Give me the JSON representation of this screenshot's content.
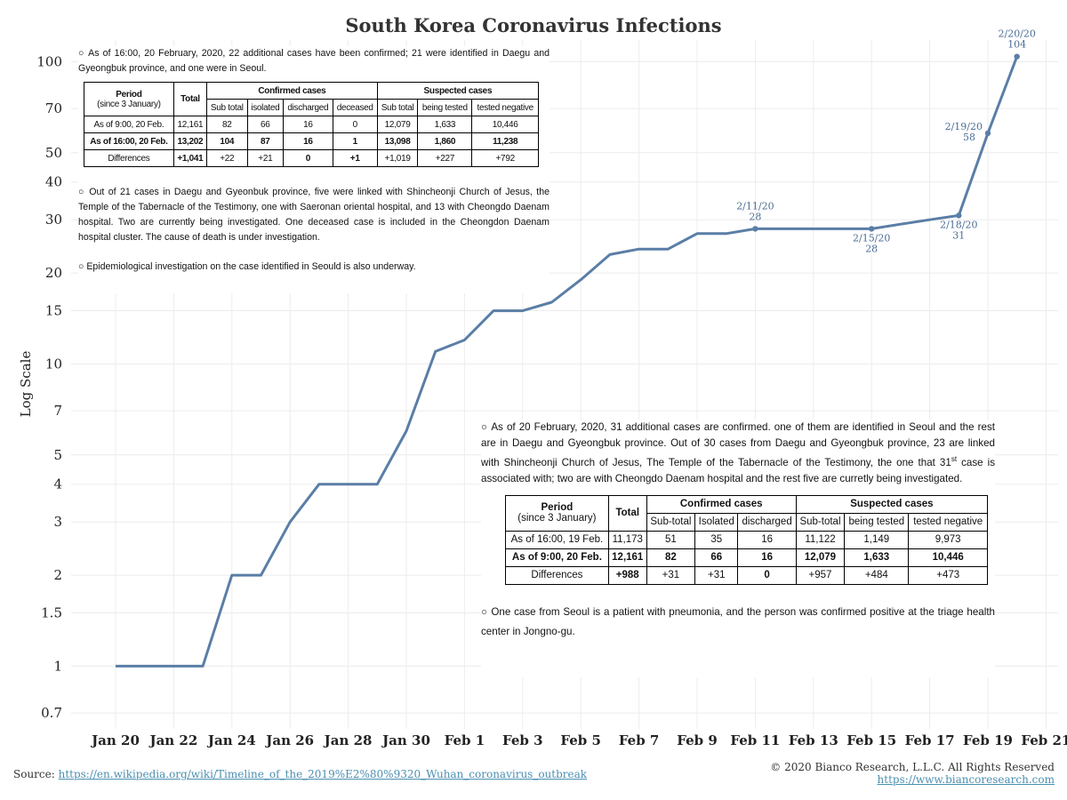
{
  "chart_data": {
    "type": "line",
    "title": "South Korea Coronavirus Infections",
    "ylabel": "Log Scale",
    "yscale": "log",
    "ylim": [
      0.62,
      118
    ],
    "yticks": [
      "0.7",
      "1",
      "1.5",
      "2",
      "3",
      "4",
      "5",
      "7",
      "10",
      "15",
      "20",
      "30",
      "40",
      "50",
      "70",
      "100"
    ],
    "xticks": [
      "Jan 20",
      "Jan 22",
      "Jan 24",
      "Jan 26",
      "Jan 28",
      "Jan 30",
      "Feb 1",
      "Feb 3",
      "Feb 5",
      "Feb 7",
      "Feb 9",
      "Feb 11",
      "Feb 13",
      "Feb 15",
      "Feb 17",
      "Feb 19",
      "Feb 21"
    ],
    "grid": true,
    "line_color": "#5a7ea6",
    "series": [
      {
        "x": [
          "2020-01-20",
          "2020-01-21",
          "2020-01-22",
          "2020-01-23",
          "2020-01-24",
          "2020-01-25",
          "2020-01-26",
          "2020-01-27",
          "2020-01-28",
          "2020-01-29",
          "2020-01-30",
          "2020-01-31",
          "2020-02-01",
          "2020-02-02",
          "2020-02-03",
          "2020-02-04",
          "2020-02-05",
          "2020-02-06",
          "2020-02-07",
          "2020-02-08",
          "2020-02-09",
          "2020-02-10",
          "2020-02-11",
          "2020-02-12",
          "2020-02-13",
          "2020-02-14",
          "2020-02-15",
          "2020-02-16",
          "2020-02-17",
          "2020-02-18",
          "2020-02-19",
          "2020-02-20"
        ],
        "values": [
          1,
          1,
          1,
          1,
          2,
          2,
          3,
          4,
          4,
          4,
          6,
          11,
          12,
          15,
          15,
          16,
          19,
          23,
          24,
          24,
          27,
          27,
          28,
          28,
          28,
          28,
          28,
          29,
          30,
          31,
          58,
          104
        ]
      }
    ],
    "annotations": [
      {
        "date": "2/11/20",
        "value": "28",
        "x": "2020-02-11",
        "y": 28,
        "pos": "above"
      },
      {
        "date": "2/15/20",
        "value": "28",
        "x": "2020-02-15",
        "y": 28,
        "pos": "below"
      },
      {
        "date": "2/18/20",
        "value": "31",
        "x": "2020-02-18",
        "y": 31,
        "pos": "below"
      },
      {
        "date": "2/19/20",
        "value": "58",
        "x": "2020-02-19",
        "y": 58,
        "pos": "left"
      },
      {
        "date": "2/20/20",
        "value": "104",
        "x": "2020-02-20",
        "y": 104,
        "pos": "above"
      }
    ]
  },
  "panel1": {
    "intro": "○ As of 16:00, 20 February, 2020, 22 additional cases have been confirmed; 21 were identified in Daegu and Gyeongbuk province, and one were in Seoul.",
    "head": {
      "period": "Period",
      "since": "(since 3 January)",
      "total": "Total",
      "confirmed": "Confirmed cases",
      "suspected": "Suspected cases",
      "cols": [
        "Sub total",
        "isolated",
        "discharged",
        "deceased",
        "Sub total",
        "being tested",
        "tested negative"
      ]
    },
    "rows": [
      [
        "As of 9:00, 20 Feb.",
        "12,161",
        "82",
        "66",
        "16",
        "0",
        "12,079",
        "1,633",
        "10,446"
      ],
      [
        "As of 16:00, 20 Feb.",
        "13,202",
        "104",
        "87",
        "16",
        "1",
        "13,098",
        "1,860",
        "11,238"
      ],
      [
        "Differences",
        "+1,041",
        "+22",
        "+21",
        "0",
        "+1",
        "+1,019",
        "+227",
        "+792"
      ]
    ],
    "para2": "○ Out of 21 cases in Daegu and Gyeonbuk province, five were linked with Shincheonji Church of Jesus, the Temple of the Tabernacle of the Testimony, one with Saeronan oriental hospital, and 13 with Cheongdo Daenam hospital. Two are currently being investigated. One deceased case is included in the Cheongdon Daenam hospital cluster. The cause of death is under investigation.",
    "para3": "○ Epidemiological investigation on the case identified in Seould is also underway."
  },
  "panel2": {
    "intro_a": "○ As of 20 February, 2020, 31 additional cases are confirmed. one of them are identified in Seoul and the rest are in Daegu and Gyeongbuk province. Out of 30 cases from Daegu and Gyeongbuk province, 23 are linked with Shincheonji Church of Jesus, The Temple of the Tabernacle of the Testimony, the one that 31",
    "intro_sup": "st",
    "intro_b": " case is associated with; two are with Cheongdo Daenam hospital and the rest five are curretly being investigated.",
    "head": {
      "period": "Period",
      "since": "(since 3 January)",
      "total": "Total",
      "confirmed": "Confirmed cases",
      "suspected": "Suspected cases",
      "cols": [
        "Sub-total",
        "Isolated",
        "discharged",
        "Sub-total",
        "being tested",
        "tested negative"
      ]
    },
    "rows": [
      [
        "As of 16:00, 19 Feb.",
        "11,173",
        "51",
        "35",
        "16",
        "11,122",
        "1,149",
        "9,973"
      ],
      [
        "As of 9:00, 20 Feb.",
        "12,161",
        "82",
        "66",
        "16",
        "12,079",
        "1,633",
        "10,446"
      ],
      [
        "Differences",
        "+988",
        "+31",
        "+31",
        "0",
        "+957",
        "+484",
        "+473"
      ]
    ],
    "para2": "○ One case from Seoul is a patient with pneumonia, and the person was confirmed positive at the triage health center in Jongno-gu."
  },
  "footer": {
    "source_label": "Source: ",
    "source_url": "https://en.wikipedia.org/wiki/Timeline_of_the_2019%E2%80%9320_Wuhan_coronavirus_outbreak",
    "copyright": "© 2020 Bianco Research, L.L.C. All Rights Reserved",
    "site": "https://www.biancoresearch.com"
  }
}
